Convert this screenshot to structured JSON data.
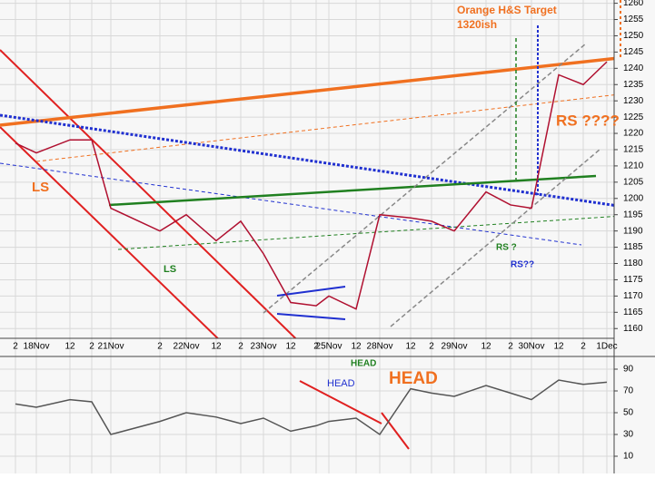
{
  "chart_data": [
    {
      "type": "line",
      "categories": [
        "2",
        "18Nov",
        "12",
        "2",
        "21Nov",
        "2",
        "22Nov",
        "12",
        "2",
        "23Nov",
        "12",
        "2",
        "25Nov",
        "12",
        "28Nov",
        "12",
        "2",
        "29Nov",
        "12",
        "2",
        "30Nov",
        "12",
        "2",
        "1Dec"
      ],
      "values": [
        1217,
        1214,
        1218,
        1218,
        1197,
        1190,
        1195,
        1187,
        1193,
        1183,
        1168,
        1167,
        1170,
        1166,
        1195,
        1194,
        1193,
        1190,
        1202,
        1198,
        1197,
        1238,
        1235,
        1242
      ],
      "color": "#b01030",
      "ylim": [
        1157,
        1261
      ],
      "yticks": [
        1160,
        1165,
        1170,
        1175,
        1180,
        1185,
        1190,
        1195,
        1200,
        1205,
        1210,
        1215,
        1220,
        1225,
        1230,
        1235,
        1240,
        1245,
        1250,
        1255,
        1260
      ],
      "grid": true,
      "annotations": [
        "Orange H&S Target",
        "1320ish",
        "LS",
        "LS",
        "HEAD",
        "HEAD",
        "HEAD",
        "RS ????",
        "RS ?",
        "RS??"
      ]
    },
    {
      "type": "line",
      "values": [
        58,
        55,
        62,
        60,
        30,
        42,
        50,
        46,
        40,
        45,
        33,
        38,
        42,
        45,
        30,
        72,
        68,
        65,
        75,
        68,
        62,
        80,
        76,
        78
      ],
      "color": "#555555",
      "ylim": [
        0,
        100
      ],
      "yticks": [
        10,
        30,
        50,
        70,
        90
      ],
      "grid": true
    }
  ]
}
